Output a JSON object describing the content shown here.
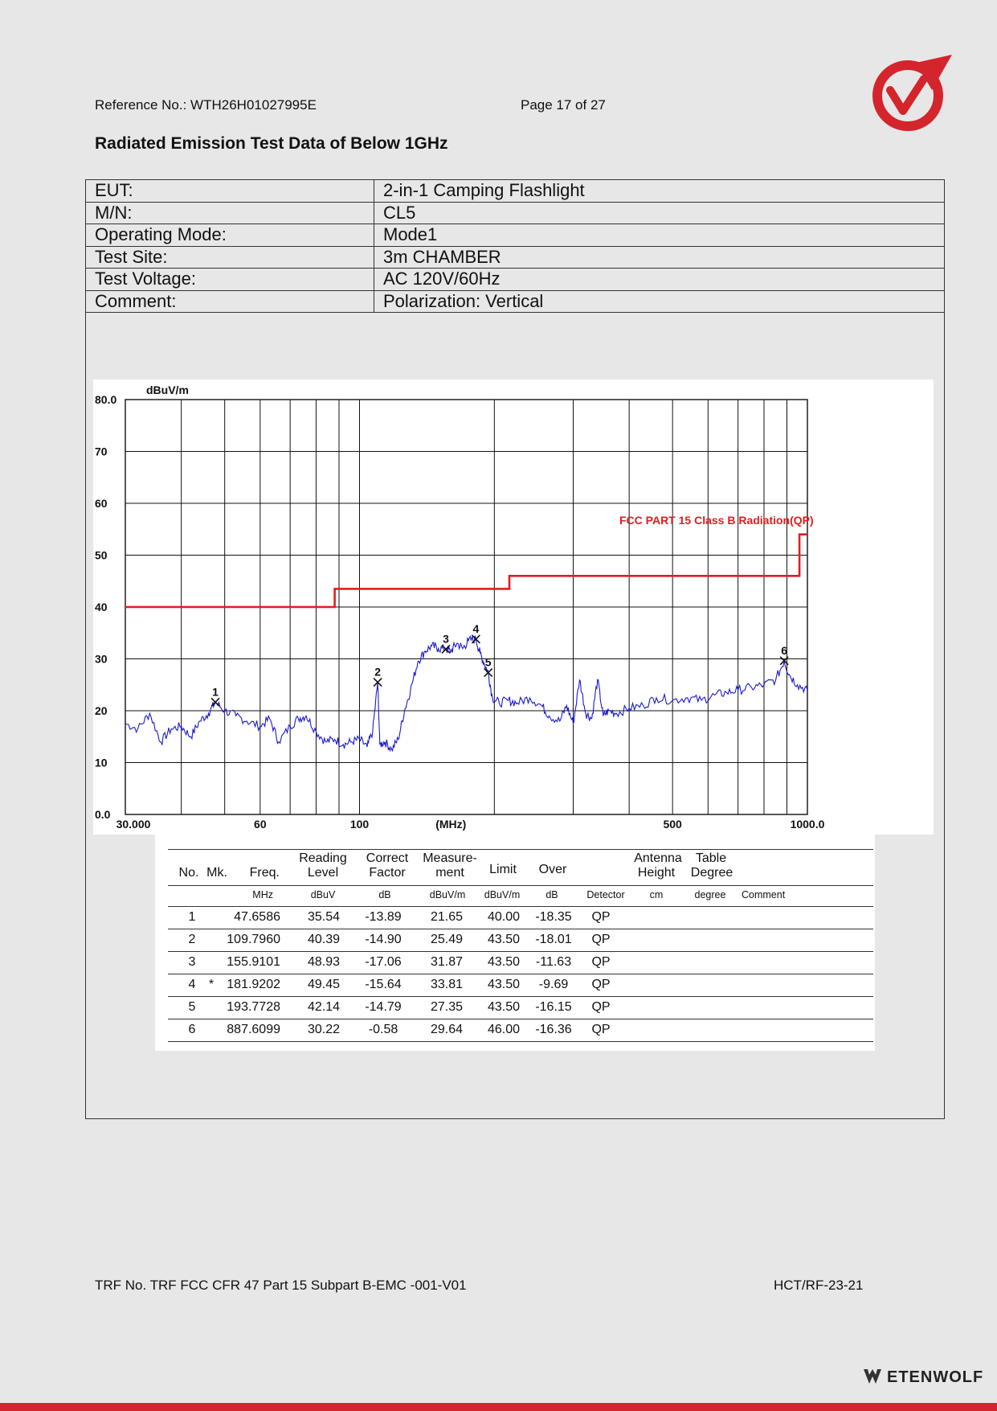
{
  "header": {
    "reference": "Reference No.: WTH26H01027995E",
    "page": "Page 17 of 27"
  },
  "title": "Radiated Emission Test Data of Below 1GHz",
  "info": [
    {
      "key": "EUT:",
      "value": "2-in-1 Camping Flashlight"
    },
    {
      "key": "M/N:",
      "value": "CL5"
    },
    {
      "key": "Operating Mode:",
      "value": "Mode1"
    },
    {
      "key": "Test Site:",
      "value": "3m CHAMBER"
    },
    {
      "key": "Test Voltage:",
      "value": "AC 120V/60Hz"
    },
    {
      "key": "Comment:",
      "value": "Polarization: Vertical"
    }
  ],
  "chart_data": {
    "type": "line",
    "ylabel": "dBuV/m",
    "xlabel": "(MHz)",
    "x_scale": "log",
    "xlim": [
      30,
      1000
    ],
    "ylim": [
      0,
      80
    ],
    "y_ticks": [
      "80.0",
      "70",
      "60",
      "50",
      "40",
      "30",
      "20",
      "10",
      "0.0"
    ],
    "x_ticks": [
      "30.000",
      "60",
      "100",
      "(MHz)",
      "500",
      "1000.0"
    ],
    "grid": true,
    "limit_label": "FCC PART 15 Class B Radiation(QP)",
    "colors": {
      "limit": "#e21d1d",
      "trace": "#1a1ad6",
      "grid": "#111111"
    },
    "series": [
      {
        "name": "FCC PART 15 Class B Radiation(QP)",
        "x": [
          30,
          88,
          88,
          216,
          216,
          960,
          960,
          1000
        ],
        "y": [
          40.0,
          40.0,
          43.5,
          43.5,
          46.0,
          46.0,
          54.0,
          54.0
        ]
      },
      {
        "x": [
          30,
          32,
          34,
          36,
          38,
          40,
          42,
          44,
          46,
          47.66,
          50,
          53,
          56,
          60,
          63,
          66,
          70,
          73,
          76,
          80,
          84,
          88,
          92,
          96,
          100,
          104,
          107,
          109.8,
          111,
          114,
          118,
          122,
          126,
          130,
          135,
          140,
          145,
          150,
          155.9,
          160,
          165,
          170,
          175,
          181.9,
          186,
          190,
          193.8,
          198,
          205,
          215,
          225,
          240,
          255,
          265,
          280,
          290,
          300,
          310,
          320,
          330,
          340,
          350,
          360,
          375,
          400,
          430,
          460,
          500,
          540,
          580,
          620,
          660,
          700,
          750,
          800,
          850,
          887.6,
          910,
          950,
          1000
        ],
        "y": [
          17.5,
          16.5,
          19.5,
          14.0,
          16.5,
          17.0,
          15.0,
          18.0,
          19.5,
          21.6,
          20.0,
          19.0,
          18.0,
          17.0,
          18.5,
          14.0,
          17.0,
          18.5,
          19.0,
          16.0,
          14.0,
          14.5,
          13.5,
          14.0,
          14.5,
          13.0,
          16.0,
          25.5,
          13.5,
          14.0,
          12.5,
          14.5,
          20.0,
          24.0,
          29.5,
          31.5,
          32.5,
          32.0,
          31.9,
          31.5,
          33.0,
          32.0,
          33.5,
          33.8,
          31.0,
          29.0,
          27.3,
          22.5,
          21.5,
          22.0,
          21.5,
          22.5,
          21.0,
          19.0,
          18.0,
          21.0,
          17.5,
          26.0,
          19.5,
          18.5,
          26.0,
          19.0,
          20.0,
          19.5,
          20.5,
          21.0,
          22.5,
          22.0,
          22.5,
          22.0,
          23.0,
          23.5,
          24.0,
          24.5,
          25.0,
          26.0,
          29.6,
          27.0,
          25.0,
          24.0
        ]
      }
    ],
    "markers": [
      {
        "label": "1",
        "x": 47.6586,
        "y": 21.65
      },
      {
        "label": "2",
        "x": 109.796,
        "y": 25.49
      },
      {
        "label": "3",
        "x": 155.9101,
        "y": 31.87
      },
      {
        "label": "4",
        "x": 181.9202,
        "y": 33.81
      },
      {
        "label": "5",
        "x": 193.7728,
        "y": 27.35
      },
      {
        "label": "6",
        "x": 887.6099,
        "y": 29.64
      }
    ]
  },
  "table": {
    "headers": {
      "no": "No.",
      "mk": "Mk.",
      "freq": "Freq.",
      "reading1": "Reading",
      "reading2": "Level",
      "correct1": "Correct",
      "correct2": "Factor",
      "measure1": "Measure-",
      "measure2": "ment",
      "limit": "Limit",
      "over": "Over",
      "antenna1": "Antenna",
      "antenna2": "Height",
      "table1": "Table",
      "table2": "Degree"
    },
    "units": {
      "freq": "MHz",
      "reading": "dBuV",
      "correct": "dB",
      "measure": "dBuV/m",
      "limit": "dBuV/m",
      "over": "dB",
      "detector": "Detector",
      "antenna": "cm",
      "degree": "degree",
      "comment": "Comment"
    },
    "rows": [
      {
        "no": "1",
        "mk": "",
        "freq": "47.6586",
        "reading": "35.54",
        "correct": "-13.89",
        "measure": "21.65",
        "limit": "40.00",
        "over": "-18.35",
        "detector": "QP"
      },
      {
        "no": "2",
        "mk": "",
        "freq": "109.7960",
        "reading": "40.39",
        "correct": "-14.90",
        "measure": "25.49",
        "limit": "43.50",
        "over": "-18.01",
        "detector": "QP"
      },
      {
        "no": "3",
        "mk": "",
        "freq": "155.9101",
        "reading": "48.93",
        "correct": "-17.06",
        "measure": "31.87",
        "limit": "43.50",
        "over": "-11.63",
        "detector": "QP"
      },
      {
        "no": "4",
        "mk": "*",
        "freq": "181.9202",
        "reading": "49.45",
        "correct": "-15.64",
        "measure": "33.81",
        "limit": "43.50",
        "over": "-9.69",
        "detector": "QP"
      },
      {
        "no": "5",
        "mk": "",
        "freq": "193.7728",
        "reading": "42.14",
        "correct": "-14.79",
        "measure": "27.35",
        "limit": "43.50",
        "over": "-16.15",
        "detector": "QP"
      },
      {
        "no": "6",
        "mk": "",
        "freq": "887.6099",
        "reading": "30.22",
        "correct": "-0.58",
        "measure": "29.64",
        "limit": "46.00",
        "over": "-16.36",
        "detector": "QP"
      }
    ]
  },
  "footer": {
    "trf": "TRF No. TRF FCC CFR 47 Part 15 Subpart B-EMC -001-V01",
    "code": "HCT/RF-23-21"
  },
  "brand": {
    "name": "ETENWOLF",
    "colors": {
      "logo": "#d4252c",
      "bar": "#d4252c"
    }
  }
}
